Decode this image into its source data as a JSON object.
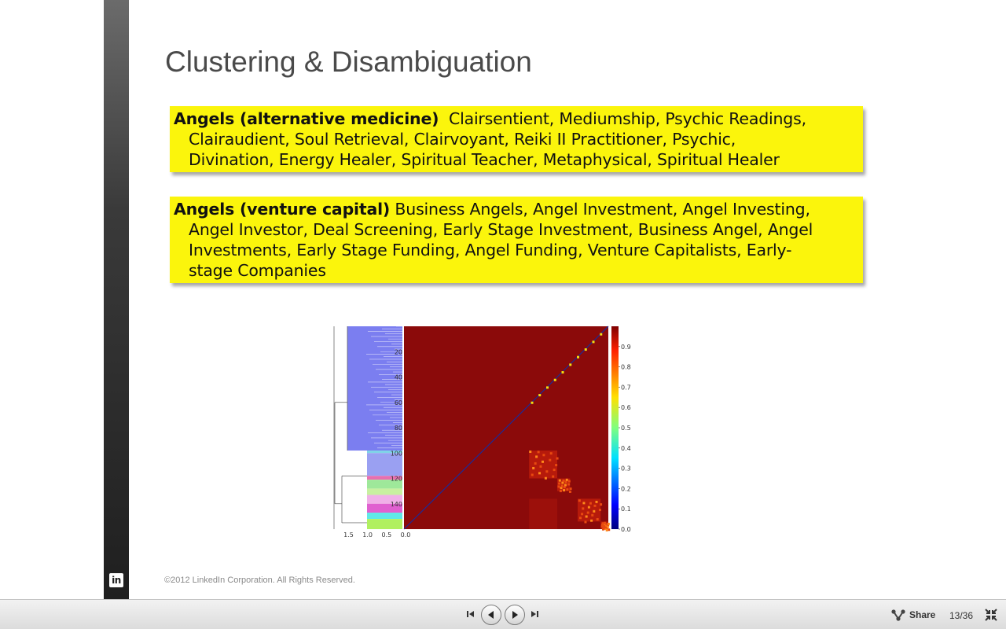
{
  "slide": {
    "title": "Clustering & Disambiguation",
    "brand_badge": "in",
    "boxes": {
      "medicine": {
        "heading": "Angels (alternative medicine)",
        "line1": "Clairsentient, Mediumship, Psychic Readings,",
        "line2": "Clairaudient, Soul Retrieval, Clairvoyant, Reiki II Practitioner, Psychic,",
        "line3": "Divination, Energy Healer, Spiritual Teacher, Metaphysical, Spiritual Healer"
      },
      "venture": {
        "heading": "Angels (venture capital)",
        "line1": "Business Angels, Angel Investment, Angel Investing,",
        "line2": "Angel Investor, Deal Screening, Early Stage Investment, Business Angel, Angel",
        "line3": "Investments, Early Stage Funding, Angel Funding, Venture Capitalists, Early-",
        "line4": "stage Companies"
      }
    },
    "copyright": "©2012 LinkedIn Corporation. All Rights Reserved."
  },
  "colors": {
    "tag_box": "#fbf50c",
    "heatmap_base": "#8b0a0a",
    "dendrogram_fill": "#7b7ef0"
  },
  "chart_data": {
    "type": "heatmap",
    "title": "",
    "row_ticks": [
      "20",
      "40",
      "60",
      "80",
      "100",
      "120",
      "140"
    ],
    "dendrogram_x_ticks": [
      "1.5",
      "1.0",
      "0.5",
      "0.0"
    ],
    "colorbar_ticks": [
      "0.0",
      "0.1",
      "0.2",
      "0.3",
      "0.4",
      "0.5",
      "0.6",
      "0.7",
      "0.8",
      "0.9"
    ],
    "colorbar_range": [
      0.0,
      1.0
    ],
    "n_items": 160,
    "clusters": [
      {
        "start": 98,
        "end": 120
      },
      {
        "start": 120,
        "end": 130
      },
      {
        "start": 136,
        "end": 154
      },
      {
        "start": 154,
        "end": 160
      }
    ]
  },
  "player": {
    "share_label": "Share",
    "page_counter": "13/36",
    "icons": {
      "first": "skip-to-first-icon",
      "prev": "previous-icon",
      "next": "play-next-icon",
      "last": "skip-to-last-icon",
      "share": "share-icon",
      "fullscreen": "exit-fullscreen-icon"
    }
  }
}
